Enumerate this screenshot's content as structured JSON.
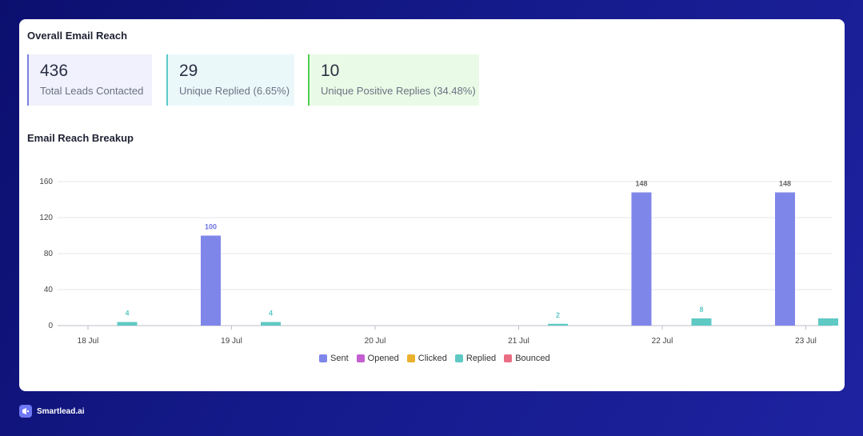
{
  "header": {
    "title": "Overall Email Reach"
  },
  "stats": [
    {
      "value": "436",
      "label": "Total Leads Contacted",
      "bg": "#f0f1fc",
      "border": "#7b80e0"
    },
    {
      "value": "29",
      "label": "Unique Replied (6.65%)",
      "bg": "#ebf8fa",
      "border": "#5cc9c9"
    },
    {
      "value": "10",
      "label": "Unique Positive Replies (34.48%)",
      "bg": "#e9fbe6",
      "border": "#4fcf4f"
    }
  ],
  "breakup": {
    "title": "Email Reach Breakup"
  },
  "chart_data": {
    "type": "bar",
    "title": "Email Reach Breakup",
    "categories": [
      "18 Jul",
      "19 Jul",
      "20 Jul",
      "21 Jul",
      "22 Jul",
      "23 Jul"
    ],
    "yticks": [
      "160",
      "120",
      "80",
      "40",
      "0"
    ],
    "ylim": [
      0,
      160
    ],
    "series": [
      {
        "name": "Sent",
        "color": "#7f86ea",
        "values": [
          null,
          100,
          null,
          null,
          148,
          148
        ]
      },
      {
        "name": "Opened",
        "color": "#c45fd0",
        "values": [
          null,
          null,
          null,
          null,
          null,
          null
        ]
      },
      {
        "name": "Clicked",
        "color": "#eab22c",
        "values": [
          null,
          null,
          null,
          null,
          null,
          null
        ]
      },
      {
        "name": "Replied",
        "color": "#5fc9c4",
        "values": [
          4,
          4,
          null,
          2,
          8,
          8
        ]
      },
      {
        "name": "Bounced",
        "color": "#ea6d83",
        "values": [
          null,
          null,
          null,
          null,
          null,
          null
        ]
      }
    ],
    "data_labels": [
      {
        "text": "4",
        "color": "#5fc9c4"
      },
      {
        "text": "100",
        "color": "#6b72e0"
      },
      {
        "text": "4",
        "color": "#5fc9c4"
      },
      {
        "text": "2",
        "color": "#5fc9c4"
      },
      {
        "text": "148",
        "color": "#666666"
      },
      {
        "text": "8",
        "color": "#5fc9c4"
      },
      {
        "text": "148",
        "color": "#666666"
      }
    ]
  },
  "legend": [
    {
      "label": "Sent",
      "color": "#7f86ea"
    },
    {
      "label": "Opened",
      "color": "#c45fd0"
    },
    {
      "label": "Clicked",
      "color": "#eab22c"
    },
    {
      "label": "Replied",
      "color": "#5fc9c4"
    },
    {
      "label": "Bounced",
      "color": "#ea6d83"
    }
  ],
  "footer": {
    "brand": "Smartlead.ai"
  }
}
